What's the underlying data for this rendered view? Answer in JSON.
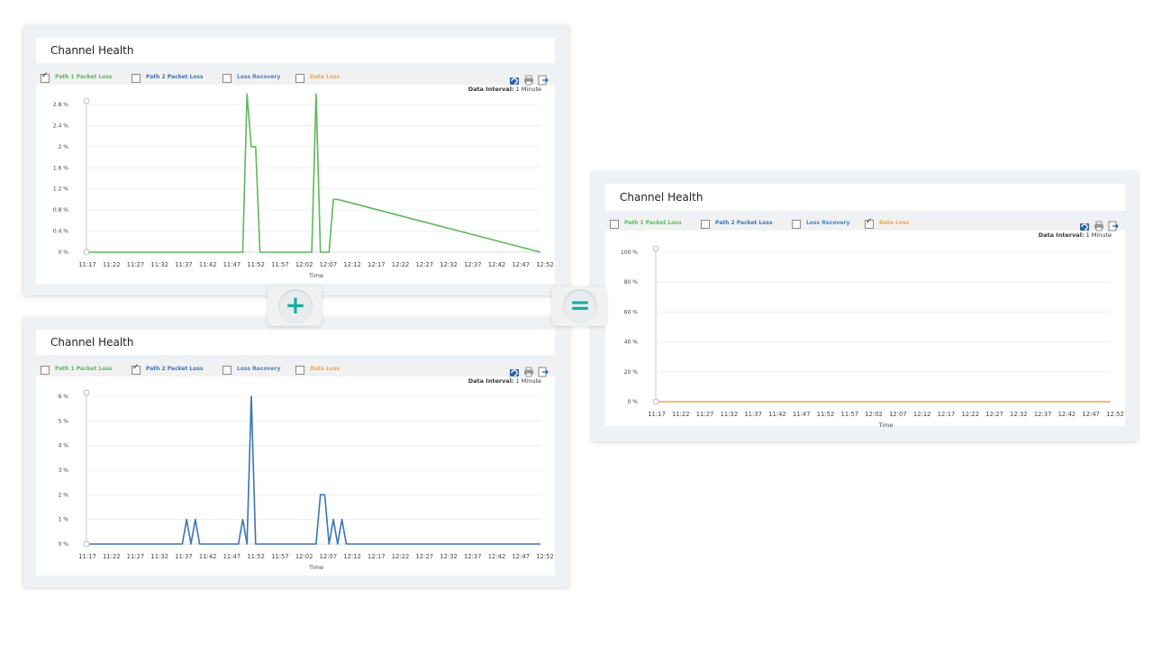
{
  "colors": {
    "path1": "#5cb85c",
    "path2": "#3a75b8",
    "loss_recovery": "#4b80c9",
    "data_loss": "#f0a64a",
    "operator": "#1aaca0"
  },
  "operators": {
    "plus": "+",
    "equals": "="
  },
  "legend_labels": [
    "Path 1 Packet Loss",
    "Path 2 Packet Loss",
    "Loss Recovery",
    "Data Loss"
  ],
  "toolbar_icons": [
    "refresh-icon",
    "print-icon",
    "export-icon"
  ],
  "panels": [
    {
      "title": "Channel Health",
      "checked": [
        true,
        false,
        false,
        false
      ],
      "interval_label": "Data Interval:",
      "interval_value": "1 Minute"
    },
    {
      "title": "Channel Health",
      "checked": [
        false,
        true,
        false,
        false
      ],
      "interval_label": "Data Interval:",
      "interval_value": "1 Minute"
    },
    {
      "title": "Channel Health",
      "checked": [
        false,
        false,
        false,
        true
      ],
      "interval_label": "Data Interval:",
      "interval_value": "1 Minute"
    }
  ],
  "chart_data": [
    {
      "type": "line",
      "title": "",
      "xlabel": "Time",
      "ylabel": "",
      "x_ticks": [
        "11:17",
        "11:22",
        "11:27",
        "11:32",
        "11:37",
        "11:42",
        "11:47",
        "11:52",
        "11:57",
        "12:02",
        "12:07",
        "12:12",
        "12:17",
        "12:22",
        "12:27",
        "12:32",
        "12:37",
        "12:42",
        "12:47",
        "12:52"
      ],
      "y_ticks": [
        "0 %",
        "0.4 %",
        "0.8 %",
        "1.2 %",
        "1.6 %",
        "2 %",
        "2.4 %",
        "2.8 %"
      ],
      "ylim": [
        0,
        2.8
      ],
      "series": [
        {
          "name": "Path 1 Packet Loss",
          "color": "#5cb85c",
          "x": [
            0,
            36,
            37,
            38,
            39,
            40,
            52,
            53,
            54,
            56,
            57,
            58,
            105
          ],
          "values": [
            0,
            0,
            3.0,
            2.0,
            2.0,
            0,
            0,
            3.0,
            0,
            0,
            1.0,
            1.0,
            0
          ]
        }
      ]
    },
    {
      "type": "line",
      "title": "",
      "xlabel": "Time",
      "ylabel": "",
      "x_ticks": [
        "11:17",
        "11:22",
        "11:27",
        "11:32",
        "11:37",
        "11:42",
        "11:47",
        "11:52",
        "11:57",
        "12:02",
        "12:07",
        "12:12",
        "12:17",
        "12:22",
        "12:27",
        "12:32",
        "12:37",
        "12:42",
        "12:47",
        "12:52"
      ],
      "y_ticks": [
        "0 %",
        "1 %",
        "2 %",
        "3 %",
        "4 %",
        "5 %",
        "6 %"
      ],
      "ylim": [
        0,
        6
      ],
      "series": [
        {
          "name": "Path 2 Packet Loss",
          "color": "#3a75b8",
          "x": [
            0,
            22,
            23,
            24,
            25,
            26,
            35,
            36,
            37,
            38,
            39,
            53,
            54,
            55,
            56,
            57,
            58,
            59,
            60,
            105
          ],
          "values": [
            0,
            0,
            1,
            0,
            1,
            0,
            0,
            1,
            0,
            6,
            0,
            0,
            2,
            2,
            0,
            1,
            0,
            1,
            0,
            0
          ]
        }
      ]
    },
    {
      "type": "line",
      "title": "",
      "xlabel": "Time",
      "ylabel": "",
      "x_ticks": [
        "11:17",
        "11:22",
        "11:27",
        "11:32",
        "11:37",
        "11:42",
        "11:47",
        "11:52",
        "11:57",
        "12:02",
        "12:07",
        "12:12",
        "12:17",
        "12:22",
        "12:27",
        "12:32",
        "12:37",
        "12:42",
        "12:47",
        "12:52"
      ],
      "y_ticks": [
        "0 %",
        "20 %",
        "40 %",
        "60 %",
        "80 %",
        "100 %"
      ],
      "ylim": [
        0,
        100
      ],
      "series": [
        {
          "name": "Data Loss",
          "color": "#f0a64a",
          "x": [
            0,
            105
          ],
          "values": [
            0,
            0
          ]
        }
      ]
    }
  ]
}
